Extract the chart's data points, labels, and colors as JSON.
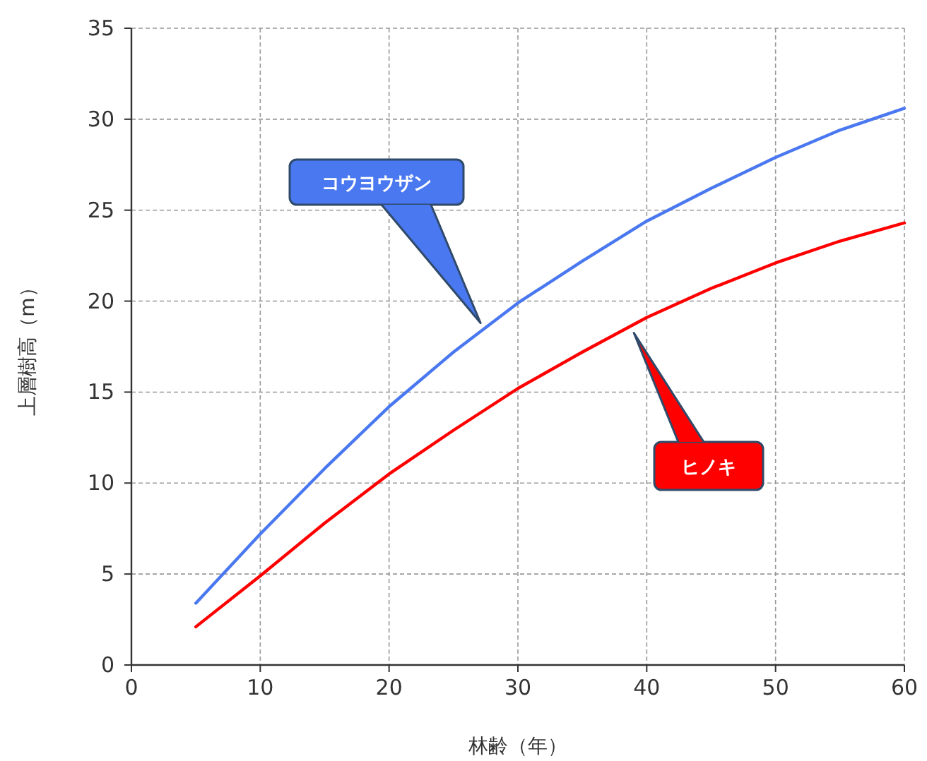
{
  "chart_data": {
    "type": "line",
    "xlabel": "林齢（年）",
    "ylabel": "上層樹高（m）",
    "x": [
      5,
      10,
      15,
      20,
      25,
      30,
      35,
      40,
      45,
      50,
      55,
      60
    ],
    "series": [
      {
        "name": "コウヨウザン",
        "color": "#4a78f0",
        "values": [
          3.4,
          7.2,
          10.8,
          14.2,
          17.2,
          19.9,
          22.2,
          24.4,
          26.2,
          27.9,
          29.4,
          30.6
        ]
      },
      {
        "name": "ヒノキ",
        "color": "#ff0000",
        "values": [
          2.1,
          4.9,
          7.8,
          10.5,
          12.9,
          15.2,
          17.2,
          19.1,
          20.7,
          22.1,
          23.3,
          24.3
        ]
      }
    ],
    "xlim": [
      0,
      60
    ],
    "ylim": [
      0,
      35
    ],
    "xticks": [
      0,
      10,
      20,
      30,
      40,
      50,
      60
    ],
    "yticks": [
      0,
      5,
      10,
      15,
      20,
      25,
      30,
      35
    ],
    "grid": true,
    "legend": false,
    "marker": "none",
    "line_style": "solid"
  }
}
